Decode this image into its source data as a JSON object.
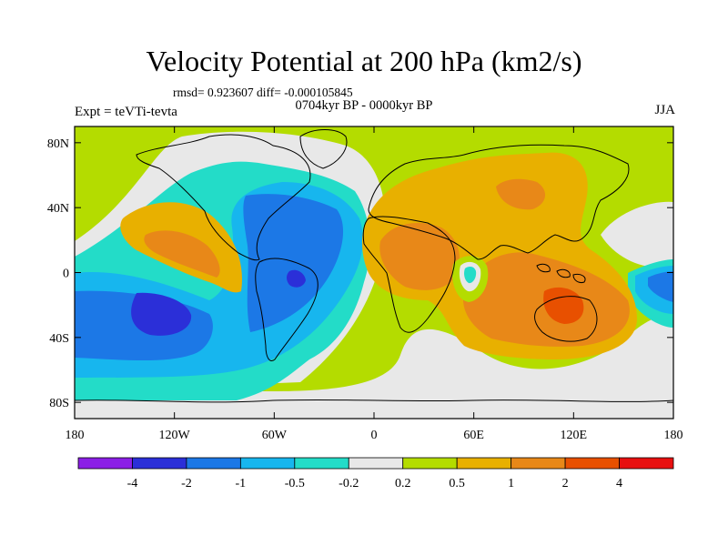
{
  "title": "Velocity Potential at 200 hPa (km2/s)",
  "subtitle": "rmsd= 0.923607  diff= -0.000105845",
  "period": "0704kyr BP - 0000kyr BP",
  "left_label": "Expt = teVTi-tevta",
  "right_label": "JJA",
  "chart_data": {
    "type": "heatmap",
    "projection": "cylindrical-equidistant",
    "xlim": [
      -180,
      180
    ],
    "ylim": [
      -90,
      90
    ],
    "x_ticks": [
      {
        "value": -180,
        "label": "180"
      },
      {
        "value": -120,
        "label": "120W"
      },
      {
        "value": -60,
        "label": "60W"
      },
      {
        "value": 0,
        "label": "0"
      },
      {
        "value": 60,
        "label": "60E"
      },
      {
        "value": 120,
        "label": "120E"
      },
      {
        "value": 180,
        "label": "180"
      }
    ],
    "y_ticks": [
      {
        "value": 80,
        "label": "80N"
      },
      {
        "value": 40,
        "label": "40N"
      },
      {
        "value": 0,
        "label": "0"
      },
      {
        "value": -40,
        "label": "40S"
      },
      {
        "value": -80,
        "label": "80S"
      }
    ],
    "colorbar": {
      "bins": [
        {
          "color": "#8b1fe6"
        },
        {
          "color": "#2b2fd8"
        },
        {
          "color": "#1c78e6"
        },
        {
          "color": "#17b6ee"
        },
        {
          "color": "#23dcc8"
        },
        {
          "color": "#e8e8e8"
        },
        {
          "color": "#b4dc00"
        },
        {
          "color": "#e8b000"
        },
        {
          "color": "#e88818"
        },
        {
          "color": "#e85000"
        },
        {
          "color": "#e81010"
        }
      ],
      "labels": [
        {
          "value": "-4",
          "edge": 1
        },
        {
          "value": "-2",
          "edge": 2
        },
        {
          "value": "-1",
          "edge": 3
        },
        {
          "value": "-0.5",
          "edge": 4
        },
        {
          "value": "-0.2",
          "edge": 5
        },
        {
          "value": "0.2",
          "edge": 6
        },
        {
          "value": "0.5",
          "edge": 7
        },
        {
          "value": "1",
          "edge": 8
        },
        {
          "value": "2",
          "edge": 9
        },
        {
          "value": "4",
          "edge": 10
        }
      ]
    }
  }
}
